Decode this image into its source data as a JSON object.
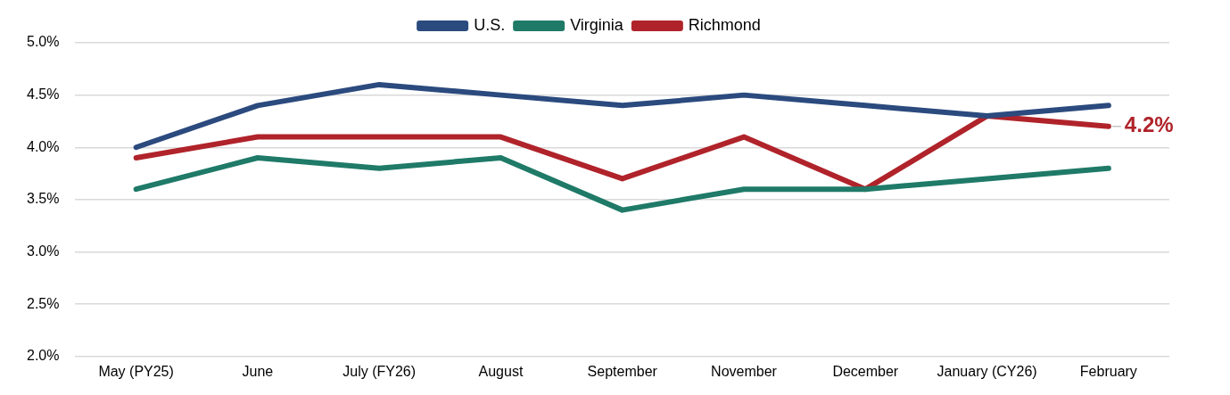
{
  "chart_data": {
    "type": "line",
    "categories": [
      "May (PY25)",
      "June",
      "July (FY26)",
      "August",
      "September",
      "November",
      "December",
      "January (CY26)",
      "February"
    ],
    "series": [
      {
        "name": "U.S.",
        "color": "#2b4a7e",
        "values": [
          4.0,
          4.4,
          4.6,
          4.5,
          4.4,
          4.5,
          4.4,
          4.3,
          4.4
        ]
      },
      {
        "name": "Virginia",
        "color": "#1f7a68",
        "values": [
          3.6,
          3.9,
          3.8,
          3.9,
          3.4,
          3.6,
          3.6,
          3.7,
          3.8
        ]
      },
      {
        "name": "Richmond",
        "color": "#b0232a",
        "values": [
          3.9,
          4.1,
          4.1,
          4.1,
          3.7,
          4.1,
          3.6,
          4.3,
          4.2
        ],
        "value_labels": [
          null,
          null,
          null,
          null,
          null,
          null,
          null,
          null,
          "4.2%"
        ]
      }
    ],
    "ylim": [
      2.0,
      5.0
    ],
    "yticks": [
      {
        "value": 2.0,
        "label": "2.0%"
      },
      {
        "value": 2.5,
        "label": "2.5%"
      },
      {
        "value": 3.0,
        "label": "3.0%"
      },
      {
        "value": 3.5,
        "label": "3.5%"
      },
      {
        "value": 4.0,
        "label": "4.0%"
      },
      {
        "value": 4.5,
        "label": "4.5%"
      },
      {
        "value": 5.0,
        "label": "5.0%"
      }
    ],
    "grid": "y",
    "legend": "top",
    "marker": "none",
    "line_style": "solid"
  }
}
